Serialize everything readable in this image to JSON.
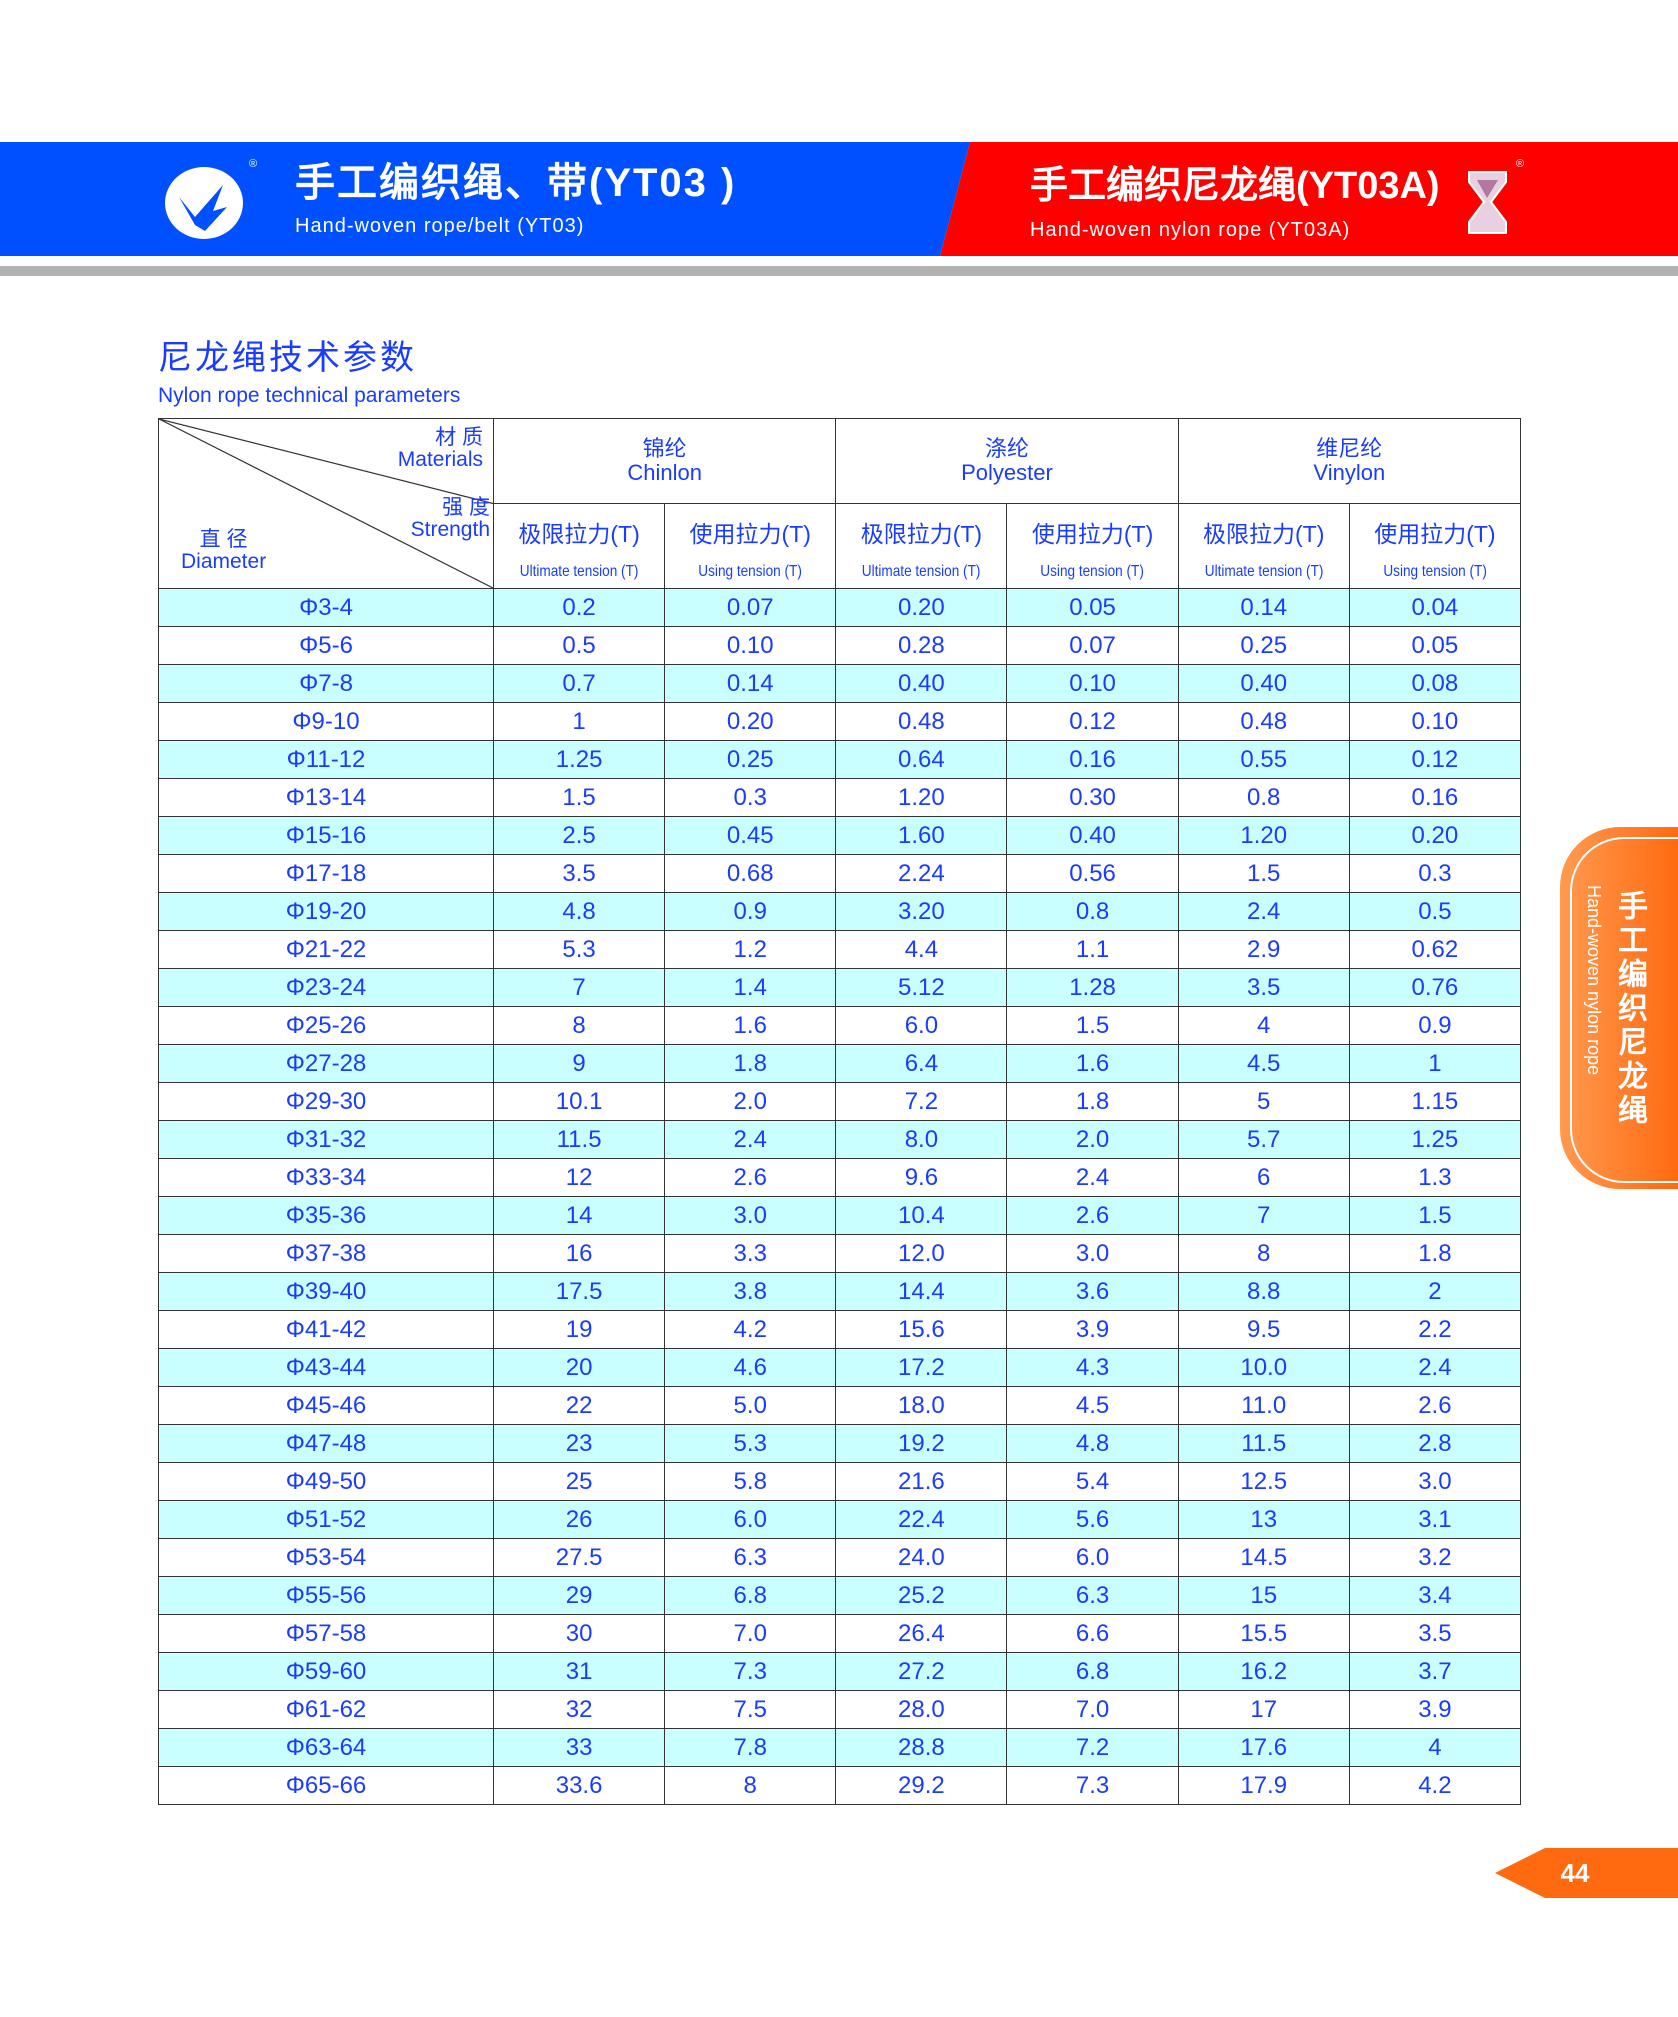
{
  "header": {
    "left_title_cn": "手工编织绳、带(YT03 )",
    "left_title_en": "Hand-woven rope/belt (YT03)",
    "right_title_cn": "手工编织尼龙绳(YT03A)",
    "right_title_en": "Hand-woven nylon rope (YT03A)",
    "registered_mark": "®",
    "colors": {
      "left_banner": "#0050ff",
      "right_banner": "#ff0000",
      "divider": "#b2b2b2"
    }
  },
  "section": {
    "title_cn": "尼龙绳技术参数",
    "title_en": "Nylon rope technical parameters"
  },
  "table": {
    "corner": {
      "materials_cn": "材 质",
      "materials_en": "Materials",
      "strength_cn": "强 度",
      "strength_en": "Strength",
      "diameter_cn": "直 径",
      "diameter_en": "Diameter"
    },
    "materials": [
      {
        "cn": "锦纶",
        "en": "Chinlon"
      },
      {
        "cn": "涤纶",
        "en": "Polyester"
      },
      {
        "cn": "维尼纶",
        "en": "Vinylon"
      }
    ],
    "subheaders": [
      {
        "cn": "极限拉力(T)",
        "en": "Ultimate tension (T)"
      },
      {
        "cn": "使用拉力(T)",
        "en": "Using tension (T)"
      },
      {
        "cn": "极限拉力(T)",
        "en": "Ultimate tension (T)"
      },
      {
        "cn": "使用拉力(T)",
        "en": "Using tension (T)"
      },
      {
        "cn": "极限拉力(T)",
        "en": "Ultimate tension (T)"
      },
      {
        "cn": "使用拉力(T)",
        "en": "Using tension (T)"
      }
    ],
    "rows": [
      [
        "Φ3-4",
        "0.2",
        "0.07",
        "0.20",
        "0.05",
        "0.14",
        "0.04"
      ],
      [
        "Φ5-6",
        "0.5",
        "0.10",
        "0.28",
        "0.07",
        "0.25",
        "0.05"
      ],
      [
        "Φ7-8",
        "0.7",
        "0.14",
        "0.40",
        "0.10",
        "0.40",
        "0.08"
      ],
      [
        "Φ9-10",
        "1",
        "0.20",
        "0.48",
        "0.12",
        "0.48",
        "0.10"
      ],
      [
        "Φ11-12",
        "1.25",
        "0.25",
        "0.64",
        "0.16",
        "0.55",
        "0.12"
      ],
      [
        "Φ13-14",
        "1.5",
        "0.3",
        "1.20",
        "0.30",
        "0.8",
        "0.16"
      ],
      [
        "Φ15-16",
        "2.5",
        "0.45",
        "1.60",
        "0.40",
        "1.20",
        "0.20"
      ],
      [
        "Φ17-18",
        "3.5",
        "0.68",
        "2.24",
        "0.56",
        "1.5",
        "0.3"
      ],
      [
        "Φ19-20",
        "4.8",
        "0.9",
        "3.20",
        "0.8",
        "2.4",
        "0.5"
      ],
      [
        "Φ21-22",
        "5.3",
        "1.2",
        "4.4",
        "1.1",
        "2.9",
        "0.62"
      ],
      [
        "Φ23-24",
        "7",
        "1.4",
        "5.12",
        "1.28",
        "3.5",
        "0.76"
      ],
      [
        "Φ25-26",
        "8",
        "1.6",
        "6.0",
        "1.5",
        "4",
        "0.9"
      ],
      [
        "Φ27-28",
        "9",
        "1.8",
        "6.4",
        "1.6",
        "4.5",
        "1"
      ],
      [
        "Φ29-30",
        "10.1",
        "2.0",
        "7.2",
        "1.8",
        "5",
        "1.15"
      ],
      [
        "Φ31-32",
        "11.5",
        "2.4",
        "8.0",
        "2.0",
        "5.7",
        "1.25"
      ],
      [
        "Φ33-34",
        "12",
        "2.6",
        "9.6",
        "2.4",
        "6",
        "1.3"
      ],
      [
        "Φ35-36",
        "14",
        "3.0",
        "10.4",
        "2.6",
        "7",
        "1.5"
      ],
      [
        "Φ37-38",
        "16",
        "3.3",
        "12.0",
        "3.0",
        "8",
        "1.8"
      ],
      [
        "Φ39-40",
        "17.5",
        "3.8",
        "14.4",
        "3.6",
        "8.8",
        "2"
      ],
      [
        "Φ41-42",
        "19",
        "4.2",
        "15.6",
        "3.9",
        "9.5",
        "2.2"
      ],
      [
        "Φ43-44",
        "20",
        "4.6",
        "17.2",
        "4.3",
        "10.0",
        "2.4"
      ],
      [
        "Φ45-46",
        "22",
        "5.0",
        "18.0",
        "4.5",
        "11.0",
        "2.6"
      ],
      [
        "Φ47-48",
        "23",
        "5.3",
        "19.2",
        "4.8",
        "11.5",
        "2.8"
      ],
      [
        "Φ49-50",
        "25",
        "5.8",
        "21.6",
        "5.4",
        "12.5",
        "3.0"
      ],
      [
        "Φ51-52",
        "26",
        "6.0",
        "22.4",
        "5.6",
        "13",
        "3.1"
      ],
      [
        "Φ53-54",
        "27.5",
        "6.3",
        "24.0",
        "6.0",
        "14.5",
        "3.2"
      ],
      [
        "Φ55-56",
        "29",
        "6.8",
        "25.2",
        "6.3",
        "15",
        "3.4"
      ],
      [
        "Φ57-58",
        "30",
        "7.0",
        "26.4",
        "6.6",
        "15.5",
        "3.5"
      ],
      [
        "Φ59-60",
        "31",
        "7.3",
        "27.2",
        "6.8",
        "16.2",
        "3.7"
      ],
      [
        "Φ61-62",
        "32",
        "7.5",
        "28.0",
        "7.0",
        "17",
        "3.9"
      ],
      [
        "Φ63-64",
        "33",
        "7.8",
        "28.8",
        "7.2",
        "17.6",
        "4"
      ],
      [
        "Φ65-66",
        "33.6",
        "8",
        "29.2",
        "7.3",
        "17.9",
        "4.2"
      ]
    ],
    "colors": {
      "text": "#1a3cff",
      "stripe": "#c9ffff"
    }
  },
  "side_tab": {
    "cn": "手工编织尼龙绳",
    "en": "Hand-woven nylon rope",
    "color": "#ff6a10"
  },
  "page_number": "44"
}
